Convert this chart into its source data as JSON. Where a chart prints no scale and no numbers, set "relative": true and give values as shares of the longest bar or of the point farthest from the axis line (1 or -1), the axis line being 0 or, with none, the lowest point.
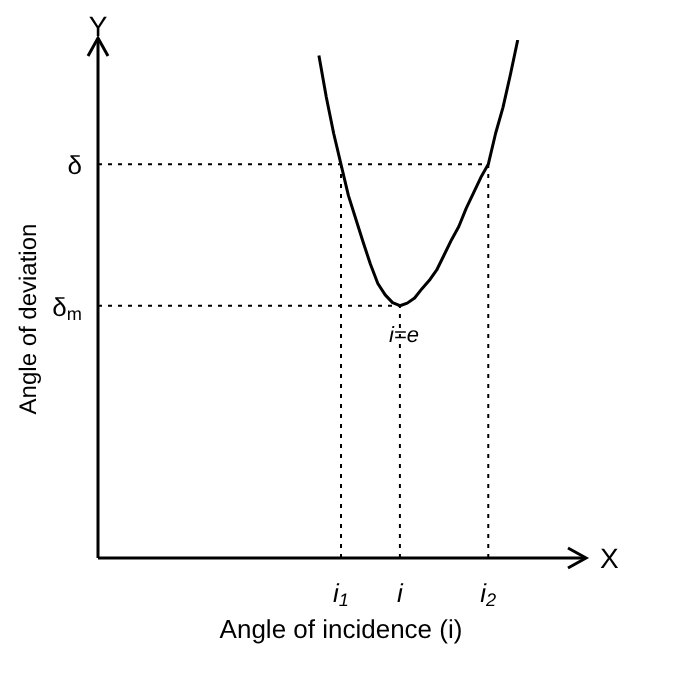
{
  "chart_data": {
    "type": "line",
    "relative": true,
    "xlabel": "Angle of incidence (i)",
    "ylabel": "Angle of deviation",
    "categories": [
      null,
      null,
      null,
      null,
      null,
      null,
      null,
      null,
      null,
      null,
      null,
      null,
      null,
      null,
      null,
      null,
      null,
      null,
      null,
      null,
      null,
      null,
      null,
      null,
      null,
      null,
      null,
      null,
      null,
      null,
      null,
      null,
      null,
      "i$_{1}$",
      null,
      null,
      null,
      null,
      null,
      null,
      null,
      "i",
      null,
      null,
      null,
      null,
      null,
      null,
      null,
      null,
      null,
      null,
      null,
      "i$_{2}$",
      null,
      null,
      null,
      null,
      null,
      null,
      null,
      null,
      null,
      null,
      null,
      null,
      null
    ],
    "series": [
      {
        "color": "#000000",
        "values": [
          null,
          null,
          null,
          null,
          null,
          null,
          null,
          null,
          null,
          null,
          null,
          null,
          null,
          null,
          null,
          null,
          null,
          null,
          null,
          null,
          null,
          null,
          null,
          null,
          null,
          null,
          null,
          null,
          null,
          null,
          0.97,
          0.89,
          0.82,
          0.76,
          0.7,
          0.655,
          0.61,
          0.567,
          0.53,
          0.508,
          0.493,
          0.487,
          0.492,
          0.502,
          0.52,
          0.536,
          0.556,
          0.585,
          0.614,
          0.64,
          0.675,
          0.705,
          0.735,
          0.76,
          0.82,
          0.87,
          0.933,
          1.0,
          null,
          null,
          null,
          null,
          null,
          null,
          null,
          null,
          null
        ]
      }
    ],
    "marker": "none",
    "line_style": "solid",
    "grid": "x",
    "ref_lines": [
      {
        "axis": "y",
        "value": 0.76,
        "label": "δ",
        "line_style": "dotted",
        "color": "#000000"
      },
      {
        "axis": "y",
        "value": 0.487,
        "label": "δ$_{m}$",
        "line_style": "dotted",
        "color": "#000000"
      }
    ],
    "annotations": [
      {
        "text": "i=e",
        "x": "i",
        "y": 0.487
      },
      "X",
      "Y"
    ]
  }
}
